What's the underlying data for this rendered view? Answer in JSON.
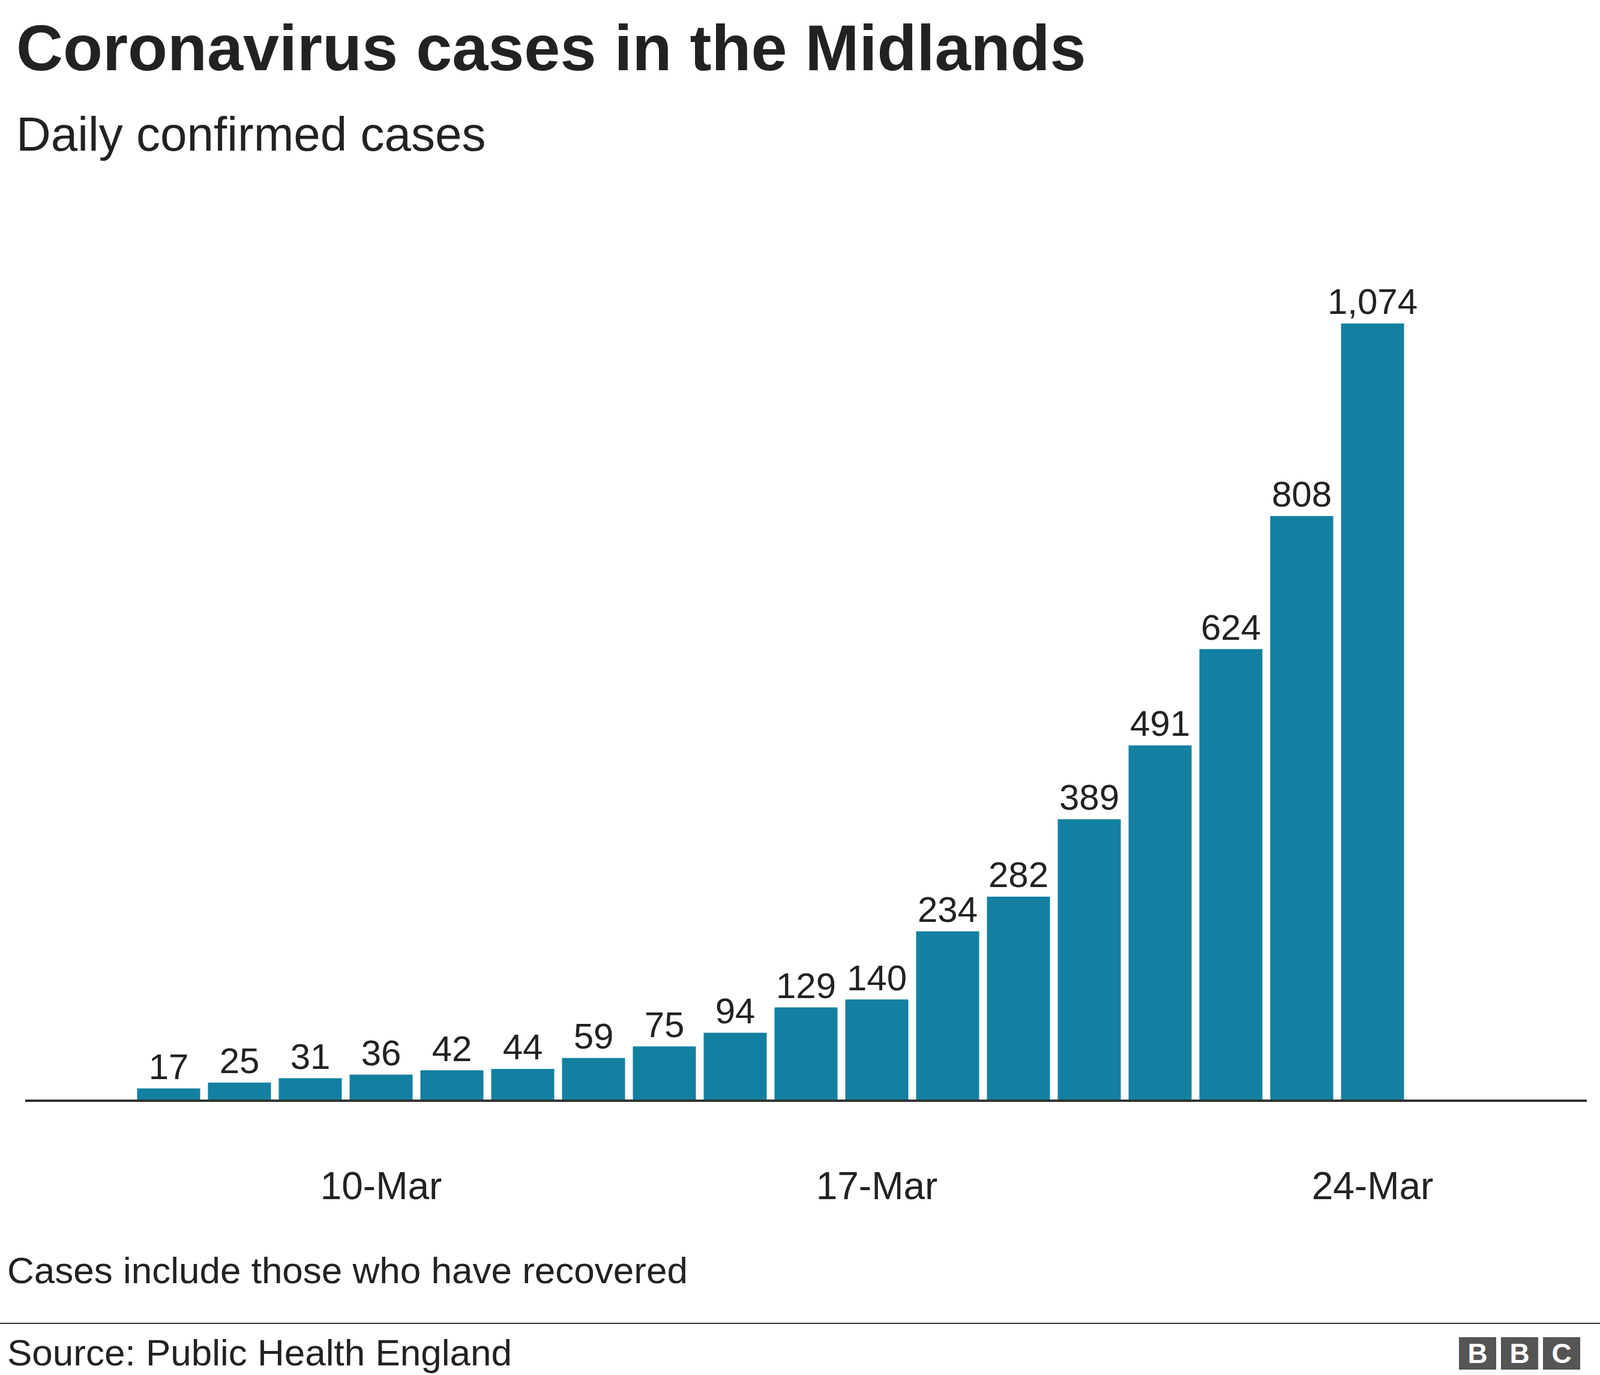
{
  "chart_data": {
    "type": "bar",
    "title": "Coronavirus cases in the Midlands",
    "subtitle": "Daily confirmed cases",
    "note": "Cases include those who have recovered",
    "source": "Source: Public Health England",
    "logo": "BBC",
    "categories": [
      null,
      null,
      null,
      "10-Mar",
      null,
      null,
      null,
      null,
      null,
      null,
      "17-Mar",
      null,
      null,
      null,
      null,
      null,
      null,
      "24-Mar"
    ],
    "values": [
      17,
      25,
      31,
      36,
      42,
      44,
      59,
      75,
      94,
      129,
      140,
      234,
      282,
      389,
      491,
      624,
      808,
      1074
    ],
    "value_labels": [
      "17",
      "25",
      "31",
      "36",
      "42",
      "44",
      "59",
      "75",
      "94",
      "129",
      "140",
      "234",
      "282",
      "389",
      "491",
      "624",
      "808",
      "1,074"
    ],
    "color": "#1380a1",
    "ylim": [
      0,
      1200
    ],
    "data_labels": true,
    "tick_labels": "x",
    "grid": false
  }
}
